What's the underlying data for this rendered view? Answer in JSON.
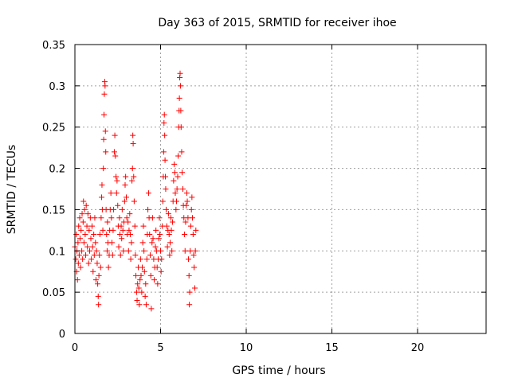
{
  "chart_data": {
    "type": "scatter",
    "title": "Day 363 of 2015, SRMTID for receiver ihoe",
    "xlabel": "GPS time / hours",
    "ylabel": "SRMTID / TECUs",
    "xlim": [
      0,
      24
    ],
    "ylim": [
      0,
      0.35
    ],
    "xticks": [
      "0",
      "5",
      "10",
      "15",
      "20"
    ],
    "yticks": [
      "0",
      "0.05",
      "0.1",
      "0.15",
      "0.2",
      "0.25",
      "0.3",
      "0.35"
    ],
    "grid": true,
    "marker": "plus",
    "color": "#ff0000",
    "series": [
      {
        "points": [
          [
            0.0,
            0.105
          ],
          [
            0.05,
            0.09
          ],
          [
            0.08,
            0.12
          ],
          [
            0.1,
            0.075
          ],
          [
            0.12,
            0.1
          ],
          [
            0.15,
            0.065
          ],
          [
            0.18,
            0.11
          ],
          [
            0.2,
            0.085
          ],
          [
            0.22,
            0.13
          ],
          [
            0.25,
            0.095
          ],
          [
            0.28,
            0.14
          ],
          [
            0.3,
            0.115
          ],
          [
            0.33,
            0.08
          ],
          [
            0.36,
            0.125
          ],
          [
            0.4,
            0.1
          ],
          [
            0.42,
            0.145
          ],
          [
            0.45,
            0.09
          ],
          [
            0.48,
            0.135
          ],
          [
            0.5,
            0.16
          ],
          [
            0.53,
            0.11
          ],
          [
            0.56,
            0.15
          ],
          [
            0.6,
            0.12
          ],
          [
            0.63,
            0.095
          ],
          [
            0.66,
            0.155
          ],
          [
            0.7,
            0.13
          ],
          [
            0.73,
            0.105
          ],
          [
            0.76,
            0.145
          ],
          [
            0.8,
            0.085
          ],
          [
            0.83,
            0.125
          ],
          [
            0.86,
            0.1
          ],
          [
            0.9,
            0.14
          ],
          [
            0.93,
            0.115
          ],
          [
            0.96,
            0.09
          ],
          [
            1.0,
            0.13
          ],
          [
            1.03,
            0.105
          ],
          [
            1.06,
            0.075
          ],
          [
            1.1,
            0.12
          ],
          [
            1.13,
            0.095
          ],
          [
            1.16,
            0.14
          ],
          [
            1.2,
            0.11
          ],
          [
            1.23,
            0.065
          ],
          [
            1.26,
            0.1
          ],
          [
            1.3,
            0.085
          ],
          [
            1.33,
            0.06
          ],
          [
            1.36,
            0.045
          ],
          [
            1.38,
            0.035
          ],
          [
            1.4,
            0.07
          ],
          [
            1.43,
            0.095
          ],
          [
            1.46,
            0.12
          ],
          [
            1.5,
            0.08
          ],
          [
            1.53,
            0.14
          ],
          [
            1.56,
            0.165
          ],
          [
            1.58,
            0.18
          ],
          [
            1.6,
            0.15
          ],
          [
            1.63,
            0.125
          ],
          [
            1.66,
            0.2
          ],
          [
            1.68,
            0.235
          ],
          [
            1.7,
            0.265
          ],
          [
            1.72,
            0.29
          ],
          [
            1.74,
            0.305
          ],
          [
            1.76,
            0.3
          ],
          [
            1.78,
            0.245
          ],
          [
            1.8,
            0.22
          ],
          [
            1.82,
            0.15
          ],
          [
            1.85,
            0.12
          ],
          [
            1.88,
            0.1
          ],
          [
            1.9,
            0.135
          ],
          [
            1.93,
            0.11
          ],
          [
            1.96,
            0.08
          ],
          [
            2.0,
            0.095
          ],
          [
            2.03,
            0.125
          ],
          [
            2.06,
            0.15
          ],
          [
            2.1,
            0.17
          ],
          [
            2.13,
            0.14
          ],
          [
            2.16,
            0.11
          ],
          [
            2.2,
            0.095
          ],
          [
            2.23,
            0.125
          ],
          [
            2.26,
            0.15
          ],
          [
            2.3,
            0.22
          ],
          [
            2.33,
            0.24
          ],
          [
            2.36,
            0.215
          ],
          [
            2.4,
            0.19
          ],
          [
            2.43,
            0.17
          ],
          [
            2.46,
            0.185
          ],
          [
            2.5,
            0.155
          ],
          [
            2.53,
            0.13
          ],
          [
            2.56,
            0.105
          ],
          [
            2.6,
            0.14
          ],
          [
            2.63,
            0.12
          ],
          [
            2.66,
            0.095
          ],
          [
            2.7,
            0.13
          ],
          [
            2.73,
            0.115
          ],
          [
            2.76,
            0.15
          ],
          [
            2.8,
            0.125
          ],
          [
            2.83,
            0.1
          ],
          [
            2.86,
            0.135
          ],
          [
            2.9,
            0.16
          ],
          [
            2.93,
            0.18
          ],
          [
            2.96,
            0.19
          ],
          [
            3.0,
            0.165
          ],
          [
            3.03,
            0.14
          ],
          [
            3.06,
            0.12
          ],
          [
            3.1,
            0.135
          ],
          [
            3.13,
            0.1
          ],
          [
            3.16,
            0.125
          ],
          [
            3.2,
            0.145
          ],
          [
            3.23,
            0.12
          ],
          [
            3.26,
            0.09
          ],
          [
            3.3,
            0.11
          ],
          [
            3.33,
            0.185
          ],
          [
            3.36,
            0.2
          ],
          [
            3.38,
            0.24
          ],
          [
            3.4,
            0.23
          ],
          [
            3.43,
            0.19
          ],
          [
            3.46,
            0.16
          ],
          [
            3.5,
            0.13
          ],
          [
            3.53,
            0.095
          ],
          [
            3.56,
            0.07
          ],
          [
            3.6,
            0.05
          ],
          [
            3.63,
            0.04
          ],
          [
            3.66,
            0.06
          ],
          [
            3.7,
            0.08
          ],
          [
            3.73,
            0.055
          ],
          [
            3.76,
            0.035
          ],
          [
            3.8,
            0.065
          ],
          [
            3.83,
            0.09
          ],
          [
            3.86,
            0.07
          ],
          [
            3.9,
            0.05
          ],
          [
            3.93,
            0.08
          ],
          [
            3.96,
            0.11
          ],
          [
            4.0,
            0.13
          ],
          [
            4.03,
            0.1
          ],
          [
            4.06,
            0.075
          ],
          [
            4.1,
            0.045
          ],
          [
            4.13,
            0.06
          ],
          [
            4.16,
            0.035
          ],
          [
            4.2,
            0.09
          ],
          [
            4.23,
            0.12
          ],
          [
            4.26,
            0.15
          ],
          [
            4.3,
            0.17
          ],
          [
            4.33,
            0.14
          ],
          [
            4.36,
            0.12
          ],
          [
            4.4,
            0.095
          ],
          [
            4.43,
            0.07
          ],
          [
            4.46,
            0.03
          ],
          [
            4.5,
            0.11
          ],
          [
            4.53,
            0.14
          ],
          [
            4.56,
            0.115
          ],
          [
            4.6,
            0.09
          ],
          [
            4.63,
            0.065
          ],
          [
            4.66,
            0.08
          ],
          [
            4.7,
            0.105
          ],
          [
            4.73,
            0.125
          ],
          [
            4.76,
            0.1
          ],
          [
            4.8,
            0.08
          ],
          [
            4.83,
            0.06
          ],
          [
            4.86,
            0.09
          ],
          [
            4.9,
            0.115
          ],
          [
            4.93,
            0.14
          ],
          [
            4.96,
            0.12
          ],
          [
            5.0,
            0.1
          ],
          [
            5.03,
            0.075
          ],
          [
            5.06,
            0.09
          ],
          [
            5.1,
            0.13
          ],
          [
            5.13,
            0.16
          ],
          [
            5.16,
            0.19
          ],
          [
            5.18,
            0.22
          ],
          [
            5.2,
            0.255
          ],
          [
            5.22,
            0.265
          ],
          [
            5.24,
            0.24
          ],
          [
            5.26,
            0.21
          ],
          [
            5.28,
            0.19
          ],
          [
            5.3,
            0.175
          ],
          [
            5.33,
            0.15
          ],
          [
            5.36,
            0.13
          ],
          [
            5.4,
            0.105
          ],
          [
            5.43,
            0.125
          ],
          [
            5.46,
            0.145
          ],
          [
            5.5,
            0.12
          ],
          [
            5.53,
            0.095
          ],
          [
            5.56,
            0.11
          ],
          [
            5.6,
            0.14
          ],
          [
            5.63,
            0.125
          ],
          [
            5.66,
            0.1
          ],
          [
            5.7,
            0.135
          ],
          [
            5.73,
            0.16
          ],
          [
            5.76,
            0.185
          ],
          [
            5.8,
            0.205
          ],
          [
            5.83,
            0.195
          ],
          [
            5.86,
            0.17
          ],
          [
            5.9,
            0.15
          ],
          [
            5.93,
            0.16
          ],
          [
            5.96,
            0.175
          ],
          [
            6.0,
            0.19
          ],
          [
            6.03,
            0.215
          ],
          [
            6.06,
            0.25
          ],
          [
            6.08,
            0.27
          ],
          [
            6.1,
            0.285
          ],
          [
            6.12,
            0.31
          ],
          [
            6.14,
            0.315
          ],
          [
            6.16,
            0.3
          ],
          [
            6.18,
            0.27
          ],
          [
            6.2,
            0.25
          ],
          [
            6.23,
            0.22
          ],
          [
            6.26,
            0.195
          ],
          [
            6.3,
            0.175
          ],
          [
            6.33,
            0.155
          ],
          [
            6.36,
            0.14
          ],
          [
            6.4,
            0.12
          ],
          [
            6.43,
            0.1
          ],
          [
            6.46,
            0.135
          ],
          [
            6.5,
            0.155
          ],
          [
            6.53,
            0.17
          ],
          [
            6.56,
            0.16
          ],
          [
            6.6,
            0.14
          ],
          [
            6.63,
            0.09
          ],
          [
            6.66,
            0.07
          ],
          [
            6.68,
            0.035
          ],
          [
            6.7,
            0.05
          ],
          [
            6.73,
            0.1
          ],
          [
            6.76,
            0.13
          ],
          [
            6.8,
            0.15
          ],
          [
            6.83,
            0.165
          ],
          [
            6.86,
            0.14
          ],
          [
            6.9,
            0.12
          ],
          [
            6.93,
            0.095
          ],
          [
            6.96,
            0.08
          ],
          [
            7.0,
            0.055
          ],
          [
            7.03,
            0.1
          ],
          [
            7.06,
            0.125
          ]
        ]
      }
    ]
  }
}
